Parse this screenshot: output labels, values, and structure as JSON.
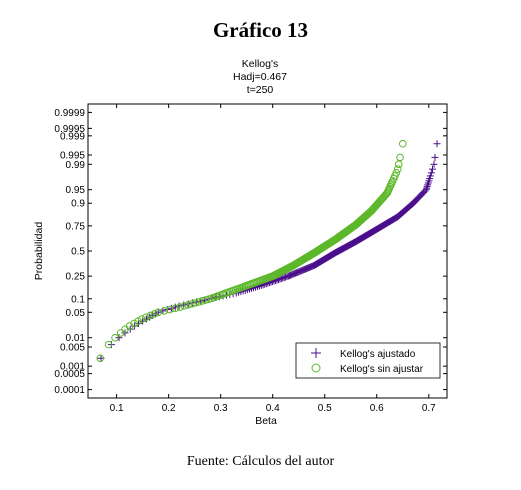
{
  "figure": {
    "title": "Gráfico 13",
    "source": "Fuente: Cálculos del autor"
  },
  "chart_data": {
    "type": "scatter",
    "title_lines": [
      "Kellog's",
      "Hadj=0.467",
      "t=250"
    ],
    "xlabel": "Beta",
    "ylabel": "Probabilidad",
    "xlim": [
      0.045,
      0.735
    ],
    "x_ticks": [
      0.1,
      0.2,
      0.3,
      0.4,
      0.5,
      0.6,
      0.7
    ],
    "y_scale": "normal-probability",
    "y_ticks": [
      0.0001,
      0.0005,
      0.001,
      0.005,
      0.01,
      0.05,
      0.1,
      0.25,
      0.5,
      0.75,
      0.9,
      0.95,
      0.99,
      0.995,
      0.999,
      0.9995,
      0.9999
    ],
    "y_tick_labels": [
      "0.0001",
      "0.0005",
      "0.001",
      "0.005",
      "0.01",
      "0.05",
      "0.1",
      "0.25",
      "0.5",
      "0.75",
      "0.9",
      "0.95",
      "0.99",
      "0.995",
      "0.999",
      "0.9995",
      "0.9999"
    ],
    "legend_position": "bottom-right",
    "grid": false,
    "series": [
      {
        "name": "Kellog's ajustado",
        "marker": "plus",
        "color": "#4b0f8c",
        "quantile_curve": {
          "x": [
            0.05,
            0.055,
            0.062,
            0.07,
            0.085,
            0.11,
            0.14,
            0.18,
            0.22,
            0.28,
            0.33,
            0.38,
            0.43,
            0.48,
            0.52,
            0.56,
            0.6,
            0.64,
            0.67,
            0.695,
            0.71,
            0.718,
            0.722
          ],
          "y": [
            8e-05,
            0.0002,
            0.0005,
            0.002,
            0.005,
            0.012,
            0.025,
            0.05,
            0.07,
            0.1,
            0.13,
            0.18,
            0.25,
            0.35,
            0.48,
            0.6,
            0.72,
            0.82,
            0.9,
            0.95,
            0.99,
            0.999,
            0.9999
          ]
        }
      },
      {
        "name": "Kellog's sin ajustar",
        "marker": "circle",
        "color": "#5cb82a",
        "quantile_curve": {
          "x": [
            0.05,
            0.056,
            0.063,
            0.072,
            0.09,
            0.12,
            0.15,
            0.18,
            0.22,
            0.28,
            0.32,
            0.36,
            0.4,
            0.44,
            0.48,
            0.52,
            0.56,
            0.59,
            0.62,
            0.64,
            0.65,
            0.657,
            0.662
          ],
          "y": [
            0.0002,
            0.0005,
            0.001,
            0.003,
            0.008,
            0.02,
            0.035,
            0.05,
            0.065,
            0.1,
            0.14,
            0.19,
            0.25,
            0.35,
            0.48,
            0.62,
            0.76,
            0.86,
            0.94,
            0.985,
            0.998,
            0.9995,
            0.99985
          ]
        }
      }
    ]
  }
}
